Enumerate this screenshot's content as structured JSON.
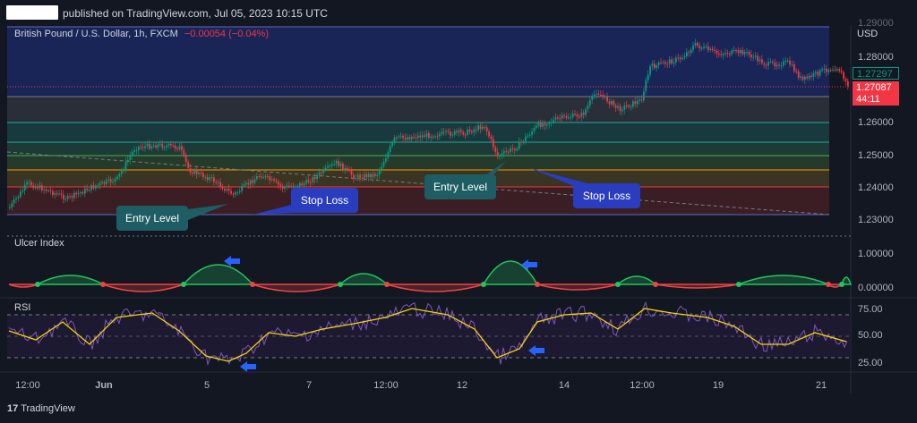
{
  "header": {
    "published_text": "published on TradingView.com, Jul 05, 2023 10:15 UTC"
  },
  "symbol": {
    "title": "British Pound / U.S. Dollar, 1h, FXCM",
    "change": "−0.00054 (−0.04%)"
  },
  "price_axis": {
    "currency": "USD",
    "ticks": [
      "1.28000",
      "1.27000",
      "1.26000",
      "1.25000",
      "1.24000",
      "1.23000"
    ],
    "top_partial": "1.29000",
    "tag_green": "1.27297",
    "tag_red_price": "1.27087",
    "tag_red_countdown": "44:11"
  },
  "ulcer_panel": {
    "title": "Ulcer Index",
    "ticks": [
      "1.00000",
      "0.00000"
    ]
  },
  "rsi_panel": {
    "title": "RSI",
    "ticks": [
      "75.00",
      "50.00",
      "25.00"
    ]
  },
  "time_axis": {
    "ticks": [
      "12:00",
      "Jun",
      "5",
      "7",
      "12:00",
      "12",
      "14",
      "12:00",
      "19",
      "21"
    ]
  },
  "annotations": {
    "entry_level_1": "Entry Level",
    "stop_loss_1": "Stop Loss",
    "entry_level_2": "Entry Level",
    "stop_loss_2": "Stop Loss"
  },
  "footer": {
    "logo_mark": "17",
    "brand": "TradingView"
  },
  "colors": {
    "background": "#131722",
    "up_candle": "#089981",
    "down_candle": "#f23645",
    "ulcer_green": "#22c55e",
    "ulcer_red": "#ef4444",
    "rsi_line": "#7e57c2",
    "rsi_ma": "#f5d400",
    "arrow_blue": "#2962ff"
  }
}
